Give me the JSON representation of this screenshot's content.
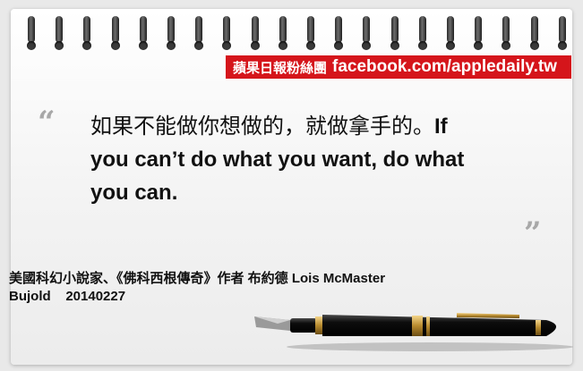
{
  "banner": {
    "fanpage": "蘋果日報粉絲團",
    "url": "facebook.com/appledaily.tw"
  },
  "quote": {
    "open_mark": "“",
    "close_mark": "”",
    "chinese": "如果不能做你想做的，就做拿手的。",
    "english": "If you can’t do what you want, do what you can."
  },
  "credit": {
    "line1": "美國科幻小說家、《佛科西根傳奇》作者 布約德 Lois McMaster",
    "line2": "Bujold    20140227"
  },
  "colors": {
    "banner_bg": "#d5151b",
    "text": "#111111",
    "quote_marks": "#a8a8a8"
  },
  "icons": [
    "spiral-binding-icon",
    "fountain-pen-icon"
  ]
}
